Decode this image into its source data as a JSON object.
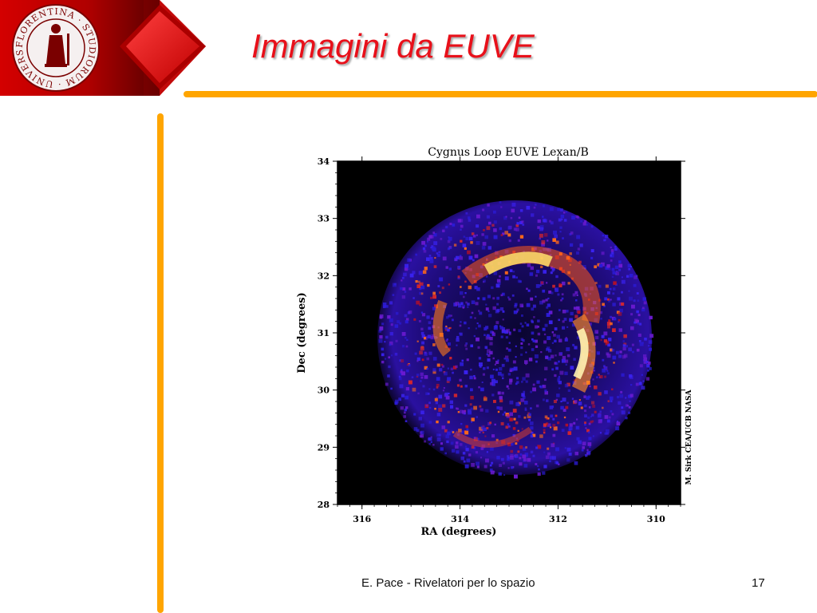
{
  "slide": {
    "title": "Immagini da EUVE",
    "footer": "E. Pace - Rivelatori per lo spazio",
    "page_number": "17",
    "accent_color": "#ffa500",
    "title_color": "#e8101a",
    "brand_red": "#cc0000"
  },
  "logo": {
    "seal_text": "FLORENTINA · STUDIORUM · UNIVERSITAS"
  },
  "figure": {
    "title": "Cygnus Loop   EUVE Lexan/B",
    "xlabel": "RA  (degrees)",
    "ylabel": "Dec  (degrees)",
    "credit": "M. Sirk CEA/UCB NASA",
    "x_ticks": [
      "316",
      "314",
      "312",
      "310"
    ],
    "y_ticks": [
      "34",
      "33",
      "32",
      "31",
      "30",
      "29",
      "28"
    ]
  },
  "chart_data": {
    "type": "heatmap",
    "title": "Cygnus Loop   EUVE Lexan/B",
    "xlabel": "RA  (degrees)",
    "ylabel": "Dec  (degrees)",
    "xlim": [
      316.5,
      309.5
    ],
    "ylim": [
      28,
      34
    ],
    "x_ticks": [
      316,
      314,
      312,
      310
    ],
    "y_ticks": [
      28,
      29,
      30,
      31,
      32,
      33,
      34
    ],
    "colormap": "black-blue-red-yellow-white",
    "field_center": [
      312.6,
      30.8
    ]
  }
}
